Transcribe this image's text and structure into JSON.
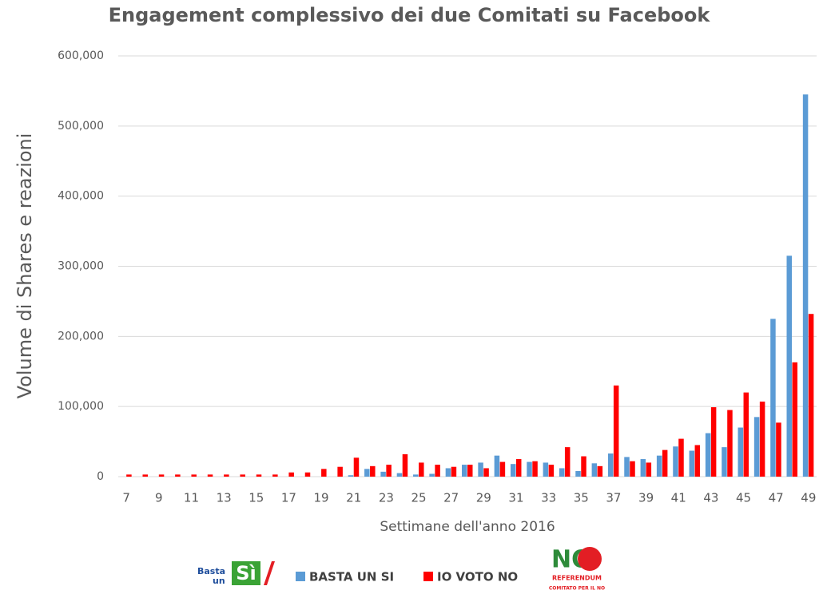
{
  "chart_data": {
    "type": "bar",
    "title": "Engagement complessivo dei due Comitati su Facebook",
    "xlabel": "Settimane dell'anno 2016",
    "ylabel": "Volume di Shares e reazioni",
    "categories": [
      "7",
      null,
      "9",
      null,
      "11",
      null,
      "13",
      null,
      "15",
      null,
      "17",
      null,
      "19",
      null,
      "21",
      null,
      "23",
      null,
      "25",
      null,
      "27",
      null,
      "29",
      null,
      "31",
      null,
      "33",
      null,
      "35",
      null,
      "37",
      null,
      "39",
      null,
      "41",
      null,
      "43",
      null,
      "45",
      null,
      "47",
      null,
      "49"
    ],
    "series": [
      {
        "name": "BASTA UN SI",
        "color": "#5b9bd5",
        "values": [
          0,
          0,
          0,
          0,
          0,
          0,
          0,
          0,
          0,
          0,
          0,
          0,
          0,
          0,
          2000,
          11000,
          7000,
          5000,
          3000,
          4000,
          12000,
          17000,
          20000,
          30000,
          18000,
          21000,
          20000,
          12000,
          8000,
          19000,
          33000,
          28000,
          25000,
          30000,
          43000,
          37000,
          62000,
          42000,
          70000,
          85000,
          225000,
          315000,
          545000
        ]
      },
      {
        "name": "IO VOTO NO",
        "color": "#ff0000",
        "values": [
          3000,
          3000,
          3000,
          3000,
          3000,
          3000,
          3000,
          3000,
          3000,
          3000,
          6000,
          6000,
          11000,
          14000,
          27000,
          15000,
          17000,
          32000,
          20000,
          17000,
          14000,
          17000,
          12000,
          21000,
          25000,
          22000,
          17000,
          42000,
          29000,
          15000,
          130000,
          22000,
          20000,
          38000,
          54000,
          45000,
          99000,
          95000,
          120000,
          107000,
          77000,
          163000,
          232000
        ]
      }
    ],
    "ylim": [
      0,
      600000
    ],
    "yticks": [
      0,
      {
        "value": 100000,
        "label": "100,000"
      },
      {
        "value": 200000,
        "label": "200,000"
      },
      {
        "value": 300000,
        "label": "300,000"
      },
      {
        "value": 400000,
        "label": "400,000"
      },
      {
        "value": 500000,
        "label": "500,000"
      },
      {
        "value": 600000,
        "label": "600,000"
      }
    ],
    "grid": true,
    "legend": "bottom",
    "logos": {
      "si": [
        "Basta",
        "un",
        "Sì"
      ],
      "no": [
        "NO",
        "REFERENDUM",
        "COMITATO PER IL NO"
      ]
    }
  }
}
